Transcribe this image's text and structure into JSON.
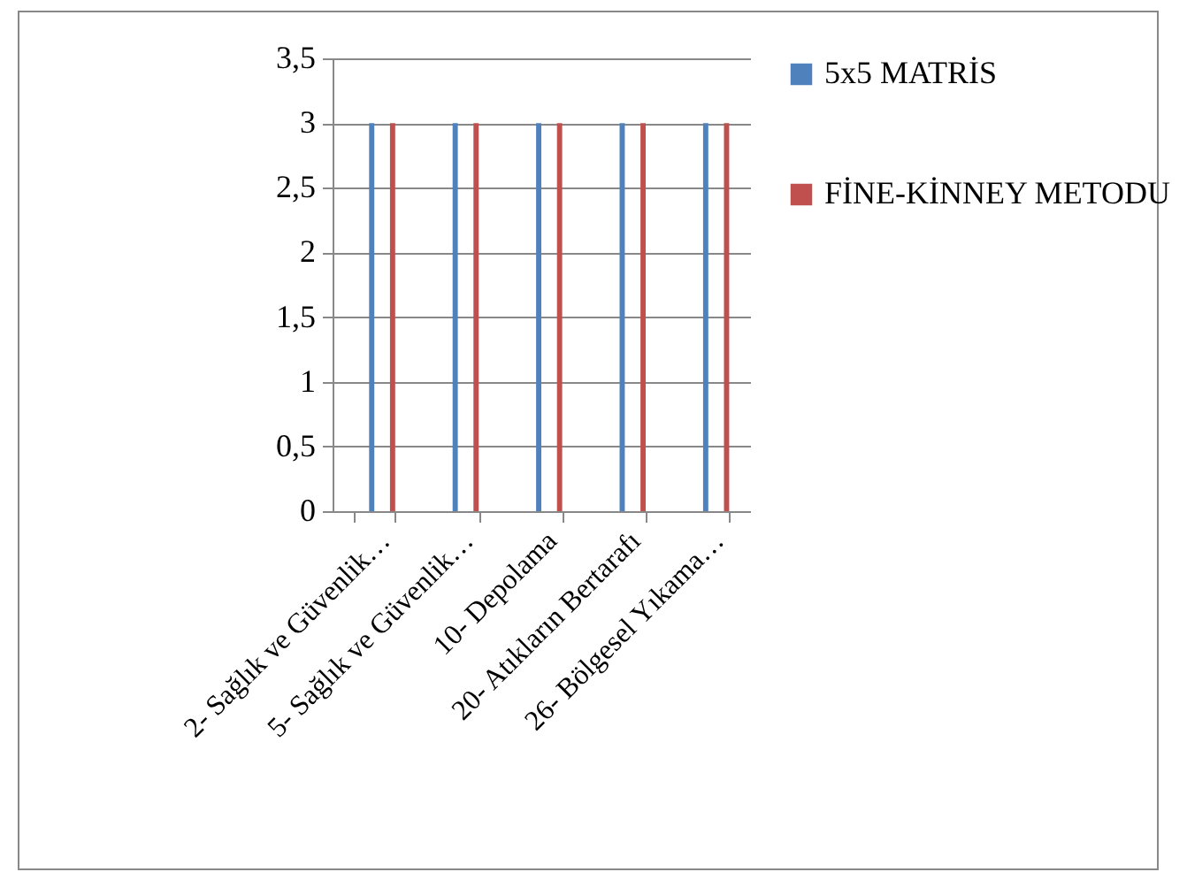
{
  "chart_data": {
    "type": "bar",
    "categories": [
      "2- Sağlık ve Güvenlik…",
      "5- Sağlık ve Güvenlik…",
      "10- Depolama",
      "20- Atıkların Bertarafı",
      "26- Bölgesel Yıkama…"
    ],
    "series": [
      {
        "name": "5x5 MATRİS",
        "color": "#4f81bd",
        "values": [
          3,
          3,
          3,
          3,
          3
        ]
      },
      {
        "name": "FİNE-KİNNEY METODU",
        "color": "#c0504d",
        "values": [
          3,
          3,
          3,
          3,
          3
        ]
      }
    ],
    "ylim": [
      0,
      3.5
    ],
    "yticks": [
      0,
      {
        "value": 0.5,
        "label": "0,5"
      },
      1,
      {
        "value": 1.5,
        "label": "1,5"
      },
      2,
      {
        "value": 2.5,
        "label": "2,5"
      },
      3,
      {
        "value": 3.5,
        "label": "3,5"
      }
    ],
    "grid": "y",
    "legend": "right"
  }
}
